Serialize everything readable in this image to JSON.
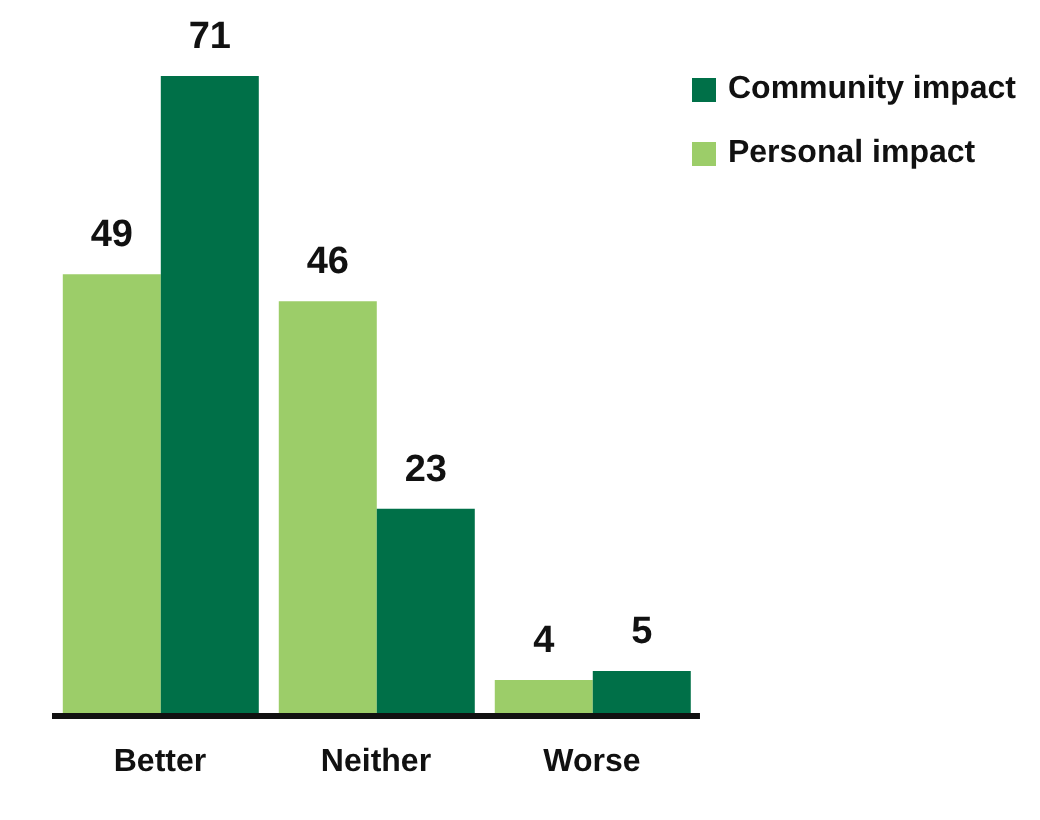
{
  "chart_data": {
    "type": "bar",
    "categories": [
      "Better",
      "Neither",
      "Worse"
    ],
    "series": [
      {
        "name": "Personal impact",
        "color": "#9ccd69",
        "values": [
          49,
          46,
          4
        ]
      },
      {
        "name": "Community impact",
        "color": "#007048",
        "values": [
          71,
          23,
          5
        ]
      }
    ],
    "data_labels": true,
    "legend": "top right",
    "grid": false
  }
}
